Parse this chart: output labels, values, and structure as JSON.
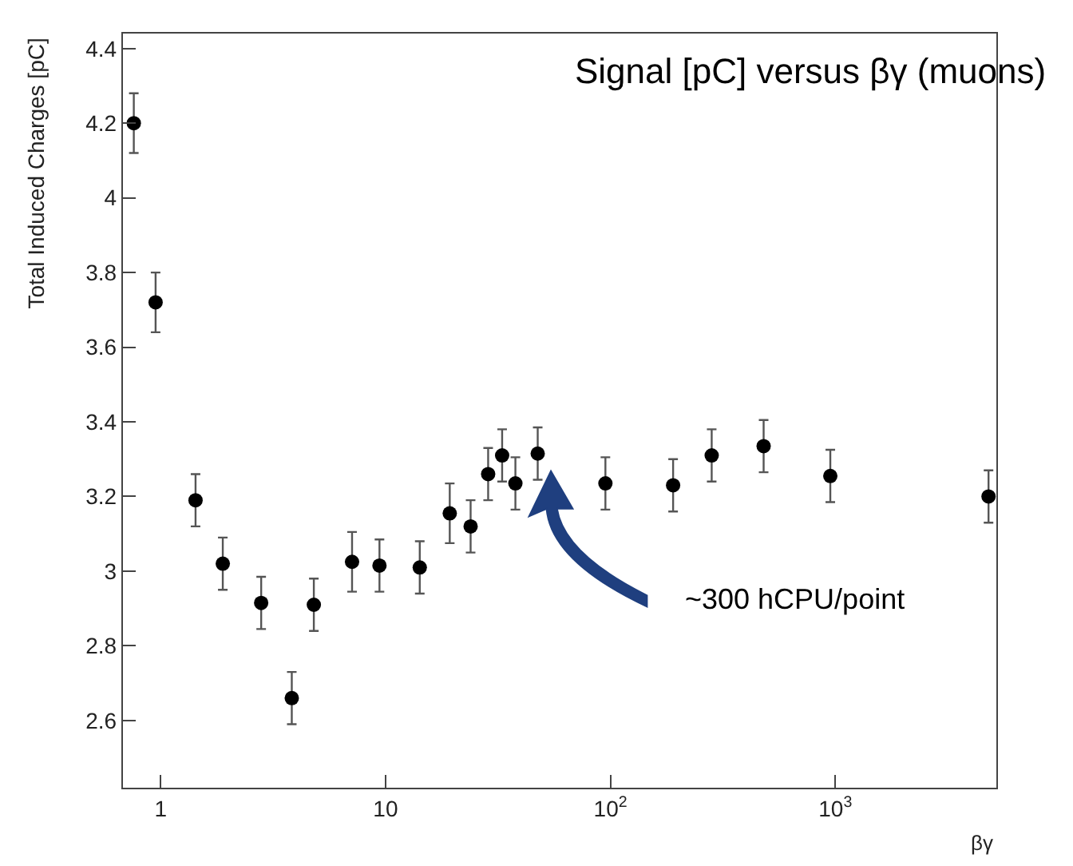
{
  "chart_data": {
    "type": "scatter",
    "title": "Signal [pC] versus βγ (muons)",
    "xlabel": "βγ",
    "ylabel": "Total Induced Charges [pC]",
    "x": [
      0.76,
      0.95,
      1.43,
      1.89,
      2.8,
      3.83,
      4.8,
      7.1,
      9.4,
      14.2,
      19.3,
      23.9,
      28.6,
      33,
      37.8,
      47.5,
      95,
      190,
      282,
      480,
      950,
      4800
    ],
    "series": [
      {
        "color": "#000000",
        "values": [
          4.2,
          3.72,
          3.19,
          3.02,
          2.915,
          2.66,
          2.91,
          3.025,
          3.015,
          3.01,
          3.155,
          3.12,
          3.26,
          3.31,
          3.235,
          3.315,
          3.235,
          3.23,
          3.31,
          3.335,
          3.255,
          3.2
        ],
        "errors": [
          0.08,
          0.08,
          0.07,
          0.07,
          0.07,
          0.07,
          0.07,
          0.08,
          0.07,
          0.07,
          0.08,
          0.07,
          0.07,
          0.07,
          0.07,
          0.07,
          0.07,
          0.07,
          0.07,
          0.07,
          0.07,
          0.07
        ]
      }
    ],
    "log": "x",
    "xlim": [
      0.68,
      5200
    ],
    "xticks": [
      1,
      10,
      {
        "value": 100,
        "label": "10$^{2}$"
      },
      {
        "value": 1000,
        "label": "10$^{3}$"
      }
    ],
    "ylim": [
      2.42,
      4.44
    ],
    "yticks": [
      2.6,
      2.8,
      3,
      3.2,
      3.4,
      3.6,
      3.8,
      4,
      4.2,
      4.4
    ],
    "marker": "circle",
    "annotations": [
      "~300 hCPU/point"
    ]
  }
}
